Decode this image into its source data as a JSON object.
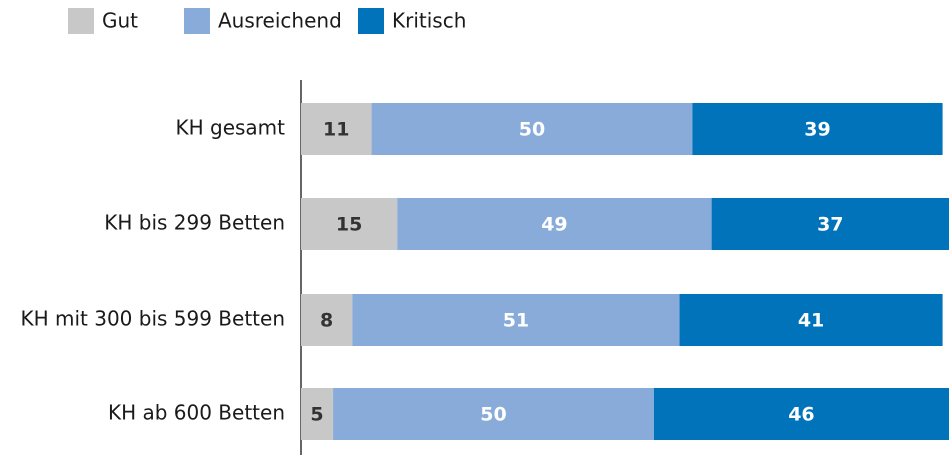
{
  "chart_data": {
    "type": "stacked-bar-horizontal",
    "categories": [
      "KH gesamt",
      "KH bis 299 Betten",
      "KH mit 300 bis 599 Betten",
      "KH ab 600 Betten"
    ],
    "series": [
      {
        "name": "Gut",
        "color": "#c8c8c8",
        "values": [
          11,
          15,
          8,
          5
        ]
      },
      {
        "name": "Ausreichend",
        "color": "#88abd9",
        "values": [
          50,
          49,
          51,
          50
        ]
      },
      {
        "name": "Kritisch",
        "color": "#0073bb",
        "values": [
          39,
          37,
          41,
          46
        ]
      }
    ],
    "xlim": [
      0,
      101
    ],
    "legend": "top-left"
  }
}
